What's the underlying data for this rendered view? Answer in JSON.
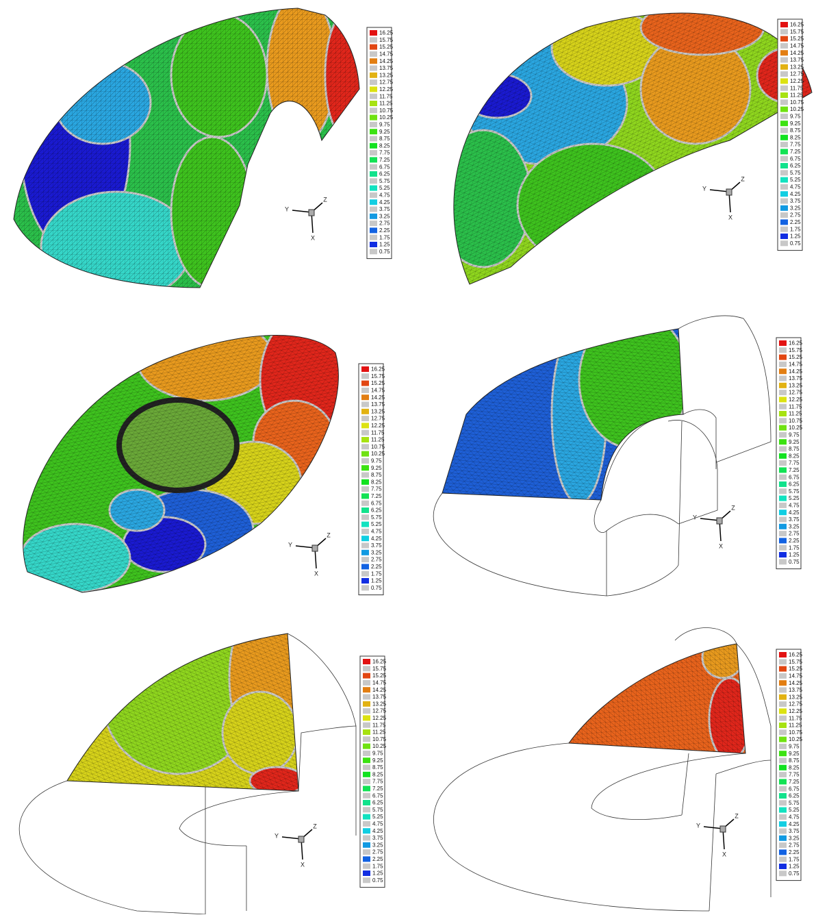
{
  "panels": [
    {
      "legend": [
        16.25,
        15.75,
        15.25,
        14.75,
        14.25,
        13.75,
        13.25,
        12.75,
        12.25,
        11.75,
        11.25,
        10.75,
        10.25,
        9.75,
        9.25,
        8.75,
        8.25,
        7.75,
        7.25,
        6.75,
        6.25,
        5.75,
        5.25,
        4.75,
        4.25,
        3.75,
        3.25,
        2.75,
        2.25,
        1.75,
        1.25,
        0.75
      ],
      "axes": [
        "Y",
        "Z",
        "X"
      ]
    },
    {
      "legend": [
        16.25,
        15.75,
        15.25,
        14.75,
        14.25,
        13.75,
        13.25,
        12.75,
        12.25,
        11.75,
        11.25,
        10.75,
        10.25,
        9.75,
        9.25,
        8.75,
        8.25,
        7.75,
        7.25,
        6.75,
        6.25,
        5.75,
        5.25,
        4.75,
        4.25,
        3.75,
        3.25,
        2.75,
        2.25,
        1.75,
        1.25,
        0.75
      ],
      "axes": [
        "Y",
        "Z",
        "X"
      ]
    },
    {
      "legend": [
        16.25,
        15.75,
        15.25,
        14.75,
        14.25,
        13.75,
        13.25,
        12.75,
        12.25,
        11.75,
        11.25,
        10.75,
        10.25,
        9.75,
        9.25,
        8.75,
        8.25,
        7.75,
        7.25,
        6.75,
        6.25,
        5.75,
        5.25,
        4.75,
        4.25,
        3.75,
        3.25,
        2.75,
        2.25,
        1.75,
        1.25,
        0.75
      ],
      "axes": [
        "Y",
        "Z",
        "X"
      ]
    },
    {
      "legend": [
        16.25,
        15.75,
        15.25,
        14.75,
        14.25,
        13.75,
        13.25,
        12.75,
        12.25,
        11.75,
        11.25,
        10.75,
        10.25,
        9.75,
        9.25,
        8.75,
        8.25,
        7.75,
        7.25,
        6.75,
        6.25,
        5.75,
        5.25,
        4.75,
        4.25,
        3.75,
        3.25,
        2.75,
        2.25,
        1.75,
        1.25,
        0.75
      ],
      "axes": [
        "Y",
        "Z",
        "X"
      ]
    },
    {
      "legend": [
        16.25,
        15.75,
        15.25,
        14.75,
        14.25,
        13.75,
        13.25,
        12.75,
        12.25,
        11.75,
        11.25,
        10.75,
        10.25,
        9.75,
        9.25,
        8.75,
        8.25,
        7.75,
        7.25,
        6.75,
        6.25,
        5.75,
        5.25,
        4.75,
        4.25,
        3.75,
        3.25,
        2.75,
        2.25,
        1.75,
        1.25,
        0.75
      ],
      "axes": [
        "Y",
        "Z",
        "X"
      ]
    },
    {
      "legend": [
        16.25,
        15.75,
        15.25,
        14.75,
        14.25,
        13.75,
        13.25,
        12.75,
        12.25,
        11.75,
        11.25,
        10.75,
        10.25,
        9.75,
        9.25,
        8.75,
        8.25,
        7.75,
        7.25,
        6.75,
        6.25,
        5.75,
        5.25,
        4.75,
        4.25,
        3.75,
        3.25,
        2.75,
        2.25,
        1.75,
        1.25,
        0.75
      ],
      "axes": [
        "Y",
        "Z",
        "X"
      ]
    }
  ]
}
